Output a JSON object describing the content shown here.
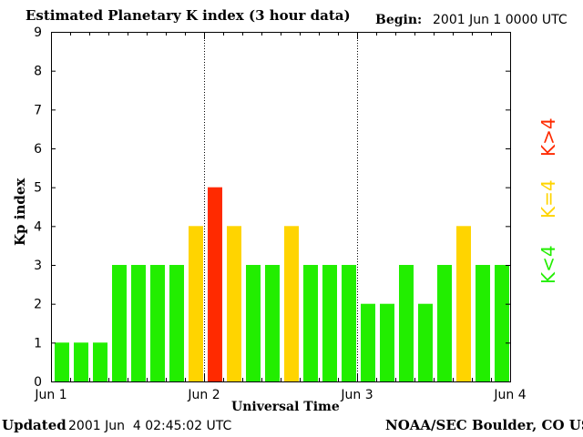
{
  "header": {
    "title": "Estimated Planetary K index (3 hour data)",
    "begin_label": "Begin:",
    "begin_value": "2001 Jun 1 0000 UTC"
  },
  "footer": {
    "updated_label": "Updated",
    "updated_value": "2001 Jun  4 02:45:02 UTC",
    "org": "NOAA/SEC Boulder, CO USA"
  },
  "legend": {
    "high": "K>4",
    "equal": "K=4",
    "low": "K<4",
    "colors": {
      "high": "#ff2a00",
      "equal": "#ffd400",
      "low": "#22ee00"
    }
  },
  "chart_data": {
    "type": "bar",
    "title": "Estimated Planetary K index (3 hour data)",
    "xlabel": "Universal Time",
    "ylabel": "Kp index",
    "ylim": [
      0,
      9
    ],
    "yticks": [
      "0",
      "1",
      "2",
      "3",
      "4",
      "5",
      "6",
      "7",
      "8",
      "9"
    ],
    "xticks": [
      "Jun 1",
      "Jun 2",
      "Jun 3",
      "Jun 4"
    ],
    "day_separators": [
      "Jun 2",
      "Jun 3"
    ],
    "bar_interval_hours": 3,
    "values": [
      1,
      1,
      1,
      3,
      3,
      3,
      3,
      4,
      5,
      4,
      3,
      3,
      4,
      3,
      3,
      3,
      2,
      2,
      3,
      2,
      3,
      4,
      3,
      3
    ]
  }
}
